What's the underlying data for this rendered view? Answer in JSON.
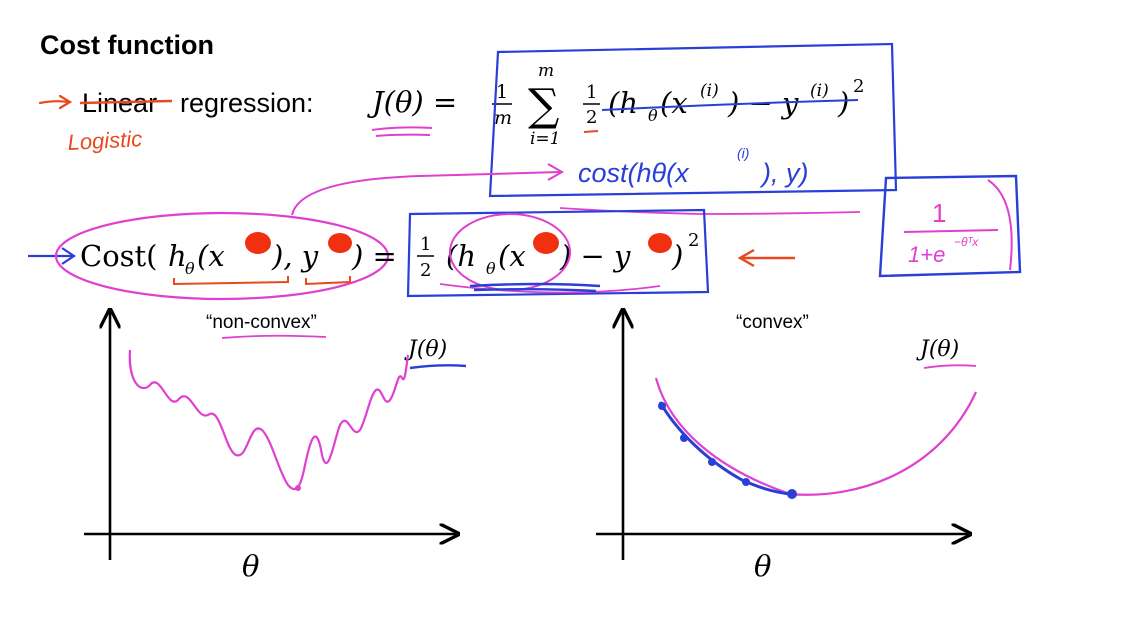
{
  "slide": {
    "title": "Cost function",
    "linear_line": {
      "struck_word": "Linear",
      "rest": "regression:",
      "J": "J(θ) =",
      "frac_one": "1",
      "frac_m": "m",
      "sum_top": "m",
      "sum_sym": "∑",
      "sum_bottom": "i=1",
      "half_one": "1",
      "half_two": "2",
      "term": "(h",
      "term_sub": "θ",
      "term_x": "(x",
      "term_sup_i": "(i)",
      "term_close": ") − y",
      "term_sup_i2": "(i)",
      "term_paren": ")",
      "power": "2"
    },
    "handwritten": {
      "logistic": "Logistic",
      "cost_hand": "cost(hθ(x",
      "cost_hand_sup": "(i)",
      "cost_hand_end": "), y)",
      "sigmoid_num": "1",
      "sigmoid_den": "1+e",
      "sigmoid_exp": "−θᵀx"
    },
    "cost_line": {
      "cost_word": "Cost(",
      "h": "h",
      "sub": "θ",
      "x": "(x",
      "comma_y": "), y",
      "close": ") =",
      "half_one": "1",
      "half_two": "2",
      "h2": "(h",
      "sub2": "θ",
      "x2": "(x",
      "minus_y": ") − y",
      "close2": ")",
      "power": "2"
    },
    "left_chart": {
      "label": "“non-convex”",
      "ylabel": "J(θ)",
      "xlabel": "θ"
    },
    "right_chart": {
      "label": "“convex”",
      "ylabel": "J(θ)",
      "xlabel": "θ"
    },
    "colors": {
      "ink_red": "#e8491f",
      "ink_magenta": "#e040d0",
      "ink_blue": "#2a3fd8",
      "blob_red": "#f03010"
    }
  }
}
